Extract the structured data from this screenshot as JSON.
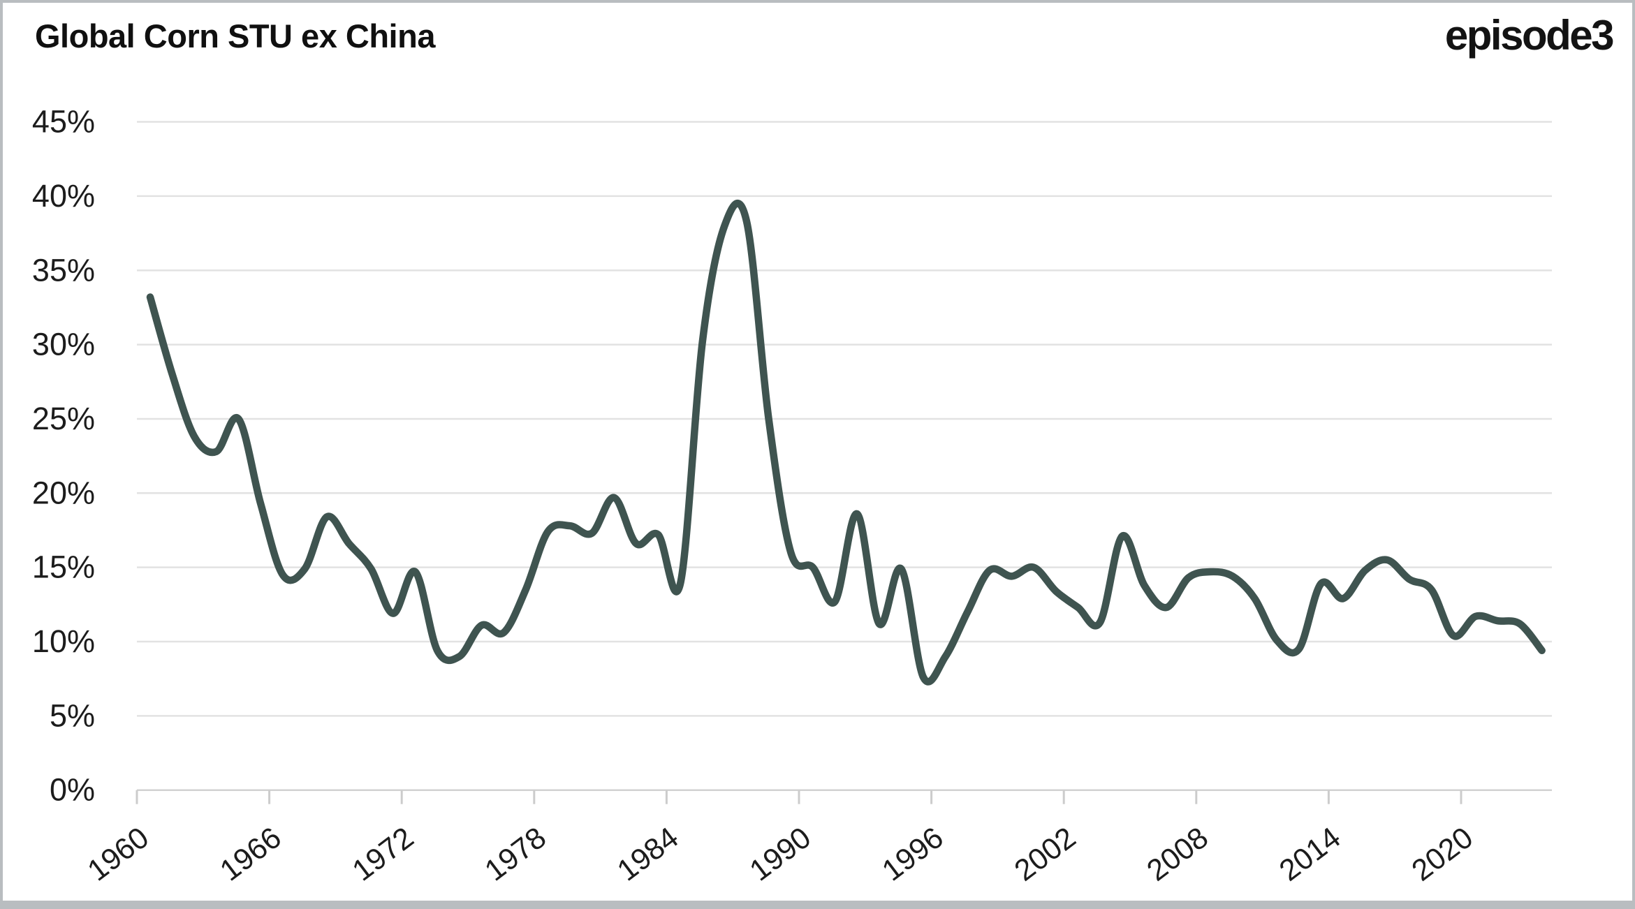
{
  "branding": {
    "logo_text": "episode3"
  },
  "chart_data": {
    "type": "line",
    "title": "Global Corn STU ex China",
    "xlabel": "",
    "ylabel": "",
    "ylim": [
      0,
      45
    ],
    "y_tick_step": 5,
    "y_tick_labels": [
      "0%",
      "5%",
      "10%",
      "15%",
      "20%",
      "25%",
      "30%",
      "35%",
      "40%",
      "45%"
    ],
    "x_tick_years": [
      1960,
      1966,
      1972,
      1978,
      1984,
      1990,
      1996,
      2002,
      2008,
      2014,
      2020
    ],
    "grid": true,
    "legend": "none",
    "line_color": "#3f5450",
    "grid_color": "#e2e2e2",
    "axis_line_color": "#d2d2d2",
    "tick_color": "#cccccc",
    "years": [
      1960,
      1961,
      1962,
      1963,
      1964,
      1965,
      1966,
      1967,
      1968,
      1969,
      1970,
      1971,
      1972,
      1973,
      1974,
      1975,
      1976,
      1977,
      1978,
      1979,
      1980,
      1981,
      1982,
      1983,
      1984,
      1985,
      1986,
      1987,
      1988,
      1989,
      1990,
      1991,
      1992,
      1993,
      1994,
      1995,
      1996,
      1997,
      1998,
      1999,
      2000,
      2001,
      2002,
      2003,
      2004,
      2005,
      2006,
      2007,
      2008,
      2009,
      2010,
      2011,
      2012,
      2013,
      2014,
      2015,
      2016,
      2017,
      2018,
      2019,
      2020,
      2021,
      2022,
      2023
    ],
    "values": [
      33.2,
      28.0,
      23.8,
      22.8,
      25.0,
      19.3,
      14.5,
      14.9,
      18.4,
      16.6,
      14.9,
      11.9,
      14.7,
      9.4,
      9.0,
      11.1,
      10.6,
      13.5,
      17.4,
      17.8,
      17.3,
      19.7,
      16.6,
      17.2,
      13.9,
      30.2,
      38.0,
      38.3,
      25.0,
      16.0,
      15.0,
      12.7,
      18.6,
      11.2,
      14.9,
      7.6,
      9.0,
      12.0,
      14.8,
      14.4,
      15.0,
      13.4,
      12.3,
      11.3,
      17.1,
      13.8,
      12.3,
      14.3,
      14.7,
      14.4,
      12.9,
      10.1,
      9.5,
      13.9,
      12.9,
      14.8,
      15.5,
      14.2,
      13.5,
      10.4,
      11.7,
      11.4,
      11.2,
      9.4
    ]
  }
}
